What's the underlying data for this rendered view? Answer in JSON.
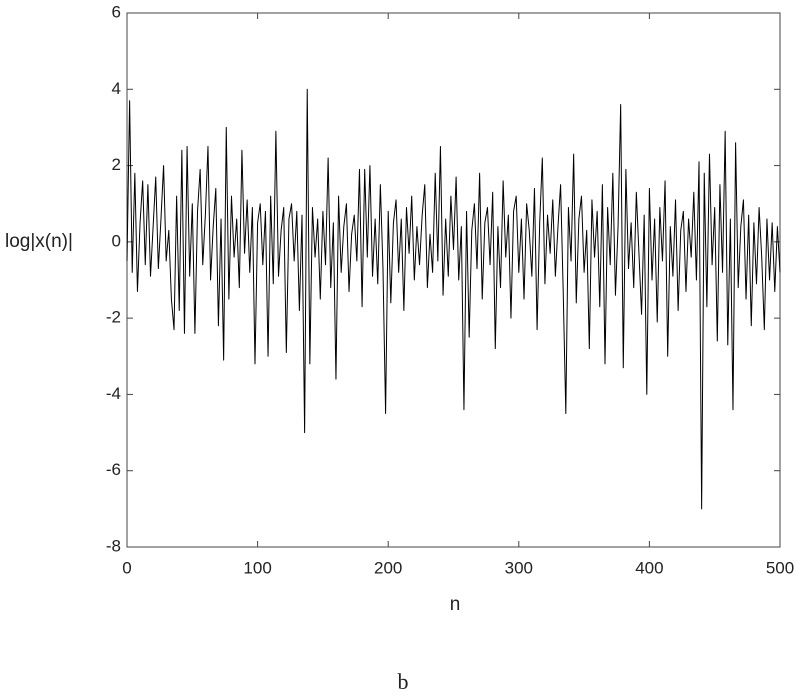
{
  "chart_data": {
    "type": "line",
    "ylabel": "log|x(n)|",
    "xlabel": "n",
    "caption": "b",
    "xlim": [
      0,
      500
    ],
    "xticks": [
      0,
      100,
      200,
      300,
      400,
      500
    ],
    "ylim": [
      -8,
      6
    ],
    "yticks": [
      -8,
      -6,
      -4,
      -2,
      0,
      2,
      4,
      6
    ],
    "x": [
      0,
      2,
      4,
      6,
      8,
      10,
      12,
      14,
      16,
      18,
      20,
      22,
      24,
      26,
      28,
      30,
      32,
      34,
      36,
      38,
      40,
      42,
      44,
      46,
      48,
      50,
      52,
      54,
      56,
      58,
      60,
      62,
      64,
      66,
      68,
      70,
      72,
      74,
      76,
      78,
      80,
      82,
      84,
      86,
      88,
      90,
      92,
      94,
      96,
      98,
      100,
      102,
      104,
      106,
      108,
      110,
      112,
      114,
      116,
      118,
      120,
      122,
      124,
      126,
      128,
      130,
      132,
      134,
      136,
      138,
      140,
      142,
      144,
      146,
      148,
      150,
      152,
      154,
      156,
      158,
      160,
      162,
      164,
      166,
      168,
      170,
      172,
      174,
      176,
      178,
      180,
      182,
      184,
      186,
      188,
      190,
      192,
      194,
      196,
      198,
      200,
      202,
      204,
      206,
      208,
      210,
      212,
      214,
      216,
      218,
      220,
      222,
      224,
      226,
      228,
      230,
      232,
      234,
      236,
      238,
      240,
      242,
      244,
      246,
      248,
      250,
      252,
      254,
      256,
      258,
      260,
      262,
      264,
      266,
      268,
      270,
      272,
      274,
      276,
      278,
      280,
      282,
      284,
      286,
      288,
      290,
      292,
      294,
      296,
      298,
      300,
      302,
      304,
      306,
      308,
      310,
      312,
      314,
      316,
      318,
      320,
      322,
      324,
      326,
      328,
      330,
      332,
      334,
      336,
      338,
      340,
      342,
      344,
      346,
      348,
      350,
      352,
      354,
      356,
      358,
      360,
      362,
      364,
      366,
      368,
      370,
      372,
      374,
      376,
      378,
      380,
      382,
      384,
      386,
      388,
      390,
      392,
      394,
      396,
      398,
      400,
      402,
      404,
      406,
      408,
      410,
      412,
      414,
      416,
      418,
      420,
      422,
      424,
      426,
      428,
      430,
      432,
      434,
      436,
      438,
      440,
      442,
      444,
      446,
      448,
      450,
      452,
      454,
      456,
      458,
      460,
      462,
      464,
      466,
      468,
      470,
      472,
      474,
      476,
      478,
      480,
      482,
      484,
      486,
      488,
      490,
      492,
      494,
      496,
      498,
      500
    ],
    "series": [
      {
        "color": "#000000",
        "values": [
          -0.5,
          3.7,
          -0.8,
          1.8,
          -1.3,
          0.5,
          1.6,
          -0.6,
          1.5,
          -0.9,
          0.4,
          1.7,
          -0.7,
          0.6,
          2.0,
          -0.5,
          0.3,
          -1.5,
          -2.3,
          1.2,
          -1.8,
          2.4,
          -2.4,
          2.5,
          -0.9,
          1.0,
          -2.4,
          0.8,
          1.9,
          -0.6,
          0.7,
          2.5,
          -1.0,
          0.4,
          1.4,
          -2.2,
          0.6,
          -3.1,
          3.0,
          -1.5,
          1.2,
          -0.4,
          0.6,
          -1.2,
          2.4,
          -0.3,
          1.1,
          -0.8,
          0.9,
          -3.2,
          0.5,
          1.0,
          -0.6,
          0.8,
          -3.0,
          1.2,
          -1.1,
          2.9,
          -0.9,
          0.3,
          0.9,
          -2.9,
          0.6,
          1.0,
          -0.5,
          0.8,
          -1.8,
          0.7,
          -5.0,
          4.0,
          -3.2,
          0.9,
          -0.4,
          0.6,
          -1.5,
          0.8,
          -0.6,
          2.2,
          -1.2,
          0.5,
          -3.6,
          1.2,
          -0.8,
          0.4,
          1.0,
          -1.3,
          0.2,
          0.7,
          -0.5,
          1.9,
          -1.7,
          1.9,
          -0.4,
          2.0,
          -0.9,
          0.6,
          -1.1,
          1.5,
          -0.7,
          -4.5,
          0.8,
          -1.6,
          0.5,
          1.1,
          -0.8,
          0.6,
          -1.8,
          0.9,
          -0.3,
          1.2,
          -1.0,
          0.4,
          -0.6,
          0.7,
          1.5,
          -1.2,
          0.2,
          -0.8,
          1.8,
          -0.5,
          2.5,
          -1.4,
          0.6,
          -0.9,
          1.2,
          -0.2,
          1.7,
          -1.0,
          0.4,
          -4.4,
          0.8,
          -2.5,
          0.3,
          1.0,
          -0.7,
          1.8,
          -1.5,
          0.5,
          0.9,
          -0.6,
          1.3,
          -2.8,
          0.4,
          -1.2,
          1.6,
          -0.4,
          0.7,
          -2.0,
          0.8,
          1.2,
          -0.8,
          0.6,
          -1.5,
          1.0,
          0.3,
          -0.9,
          1.4,
          -2.3,
          0.5,
          2.2,
          -1.1,
          0.7,
          -0.3,
          1.1,
          -0.9,
          0.4,
          1.5,
          -1.3,
          -4.5,
          0.9,
          -0.5,
          2.3,
          -1.6,
          0.6,
          1.2,
          -0.8,
          0.3,
          -2.8,
          1.1,
          -0.4,
          0.8,
          -1.7,
          1.5,
          -3.2,
          0.9,
          -0.6,
          1.8,
          -1.4,
          0.4,
          3.6,
          -3.3,
          1.9,
          -0.7,
          0.5,
          -1.2,
          1.3,
          -0.3,
          -1.9,
          0.7,
          -4.0,
          1.4,
          -1.0,
          0.6,
          -2.1,
          0.9,
          -0.5,
          1.6,
          -3.0,
          0.4,
          -0.9,
          1.1,
          -1.8,
          0.3,
          0.8,
          -1.3,
          0.6,
          -0.4,
          1.3,
          -1.0,
          2.1,
          -7.0,
          1.8,
          -1.7,
          2.3,
          -0.6,
          0.9,
          -2.6,
          1.5,
          -0.8,
          2.9,
          -2.7,
          0.6,
          -4.4,
          2.6,
          -1.2,
          0.4,
          1.1,
          -1.5,
          0.7,
          -2.2,
          0.5,
          -1.1,
          0.9,
          -0.4,
          -2.3,
          0.6,
          -1.0,
          0.5,
          -1.3,
          0.4,
          -0.8
        ]
      }
    ]
  }
}
